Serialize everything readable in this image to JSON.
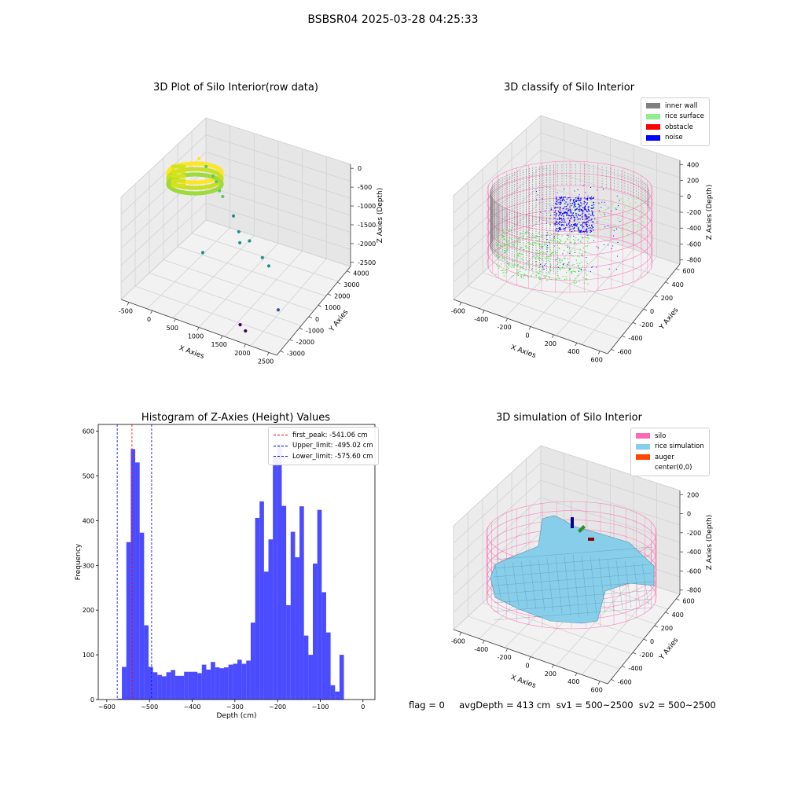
{
  "figure": {
    "suptitle": "BSBSR04 2025-03-28 04:25:33",
    "status_text": "flag = 0     avgDepth = 413 cm  sv1 = 500~2500  sv2 = 500~2500"
  },
  "chart_data": [
    {
      "id": "raw3d",
      "type": "scatter",
      "title": "3D Plot of Silo Interior(row data)",
      "xlabel": "X Axies",
      "ylabel": "Y Axies",
      "zlabel": "Z Axies (Depth)",
      "xticks": [
        "-500",
        "0",
        "500",
        "1000",
        "1500",
        "2000",
        "2500"
      ],
      "yticks": [
        "-3000",
        "-2000",
        "-1000",
        "0",
        "1000",
        "2000",
        "3000",
        "4000"
      ],
      "zticks": [
        "-2500",
        "-2000",
        "-1500",
        "-1000",
        "-500",
        "0"
      ],
      "colormap": [
        "#440154",
        "#3b528b",
        "#21918c",
        "#5ec962",
        "#fde725"
      ],
      "points": [
        {
          "x": -400,
          "y": 2600,
          "z": -350,
          "c": 0.95
        },
        {
          "x": -300,
          "y": 2500,
          "z": -400,
          "c": 0.9
        },
        {
          "x": -200,
          "y": 2450,
          "z": -450,
          "c": 0.85
        },
        {
          "x": 0,
          "y": 2300,
          "z": -600,
          "c": 0.75
        },
        {
          "x": 100,
          "y": 2200,
          "z": -700,
          "c": 0.7
        },
        {
          "x": 200,
          "y": 2100,
          "z": -900,
          "c": 0.65
        },
        {
          "x": 300,
          "y": 2000,
          "z": -1000,
          "c": 0.65
        },
        {
          "x": 600,
          "y": 1800,
          "z": -1400,
          "c": 0.6
        },
        {
          "x": 800,
          "y": 1500,
          "z": -1700,
          "c": 0.55
        },
        {
          "x": 900,
          "y": 1200,
          "z": -1900,
          "c": 0.5
        },
        {
          "x": 1200,
          "y": 900,
          "z": -1600,
          "c": 0.55
        },
        {
          "x": 1600,
          "y": 500,
          "z": -1800,
          "c": 0.5
        },
        {
          "x": 1800,
          "y": 300,
          "z": -1900,
          "c": 0.5
        },
        {
          "x": 400,
          "y": -200,
          "z": -2000,
          "c": 0.45
        },
        {
          "x": 2400,
          "y": -1200,
          "z": -2500,
          "c": 0.3
        },
        {
          "x": 1800,
          "y": -2300,
          "z": -2900,
          "c": 0.0
        },
        {
          "x": 2000,
          "y": -2600,
          "z": -2900,
          "c": 0.0
        }
      ]
    },
    {
      "id": "classify3d",
      "type": "scatter",
      "title": "3D classify of Silo Interior",
      "xlabel": "X Axies",
      "ylabel": "Y Axies",
      "zlabel": "Z Axies (Depth)",
      "xticks": [
        "-600",
        "-400",
        "-200",
        "0",
        "200",
        "400",
        "600"
      ],
      "yticks": [
        "-600",
        "-400",
        "-200",
        "0",
        "200",
        "400",
        "600"
      ],
      "zticks": [
        "-800",
        "-600",
        "-400",
        "-200",
        "0",
        "200",
        "400"
      ],
      "legend": [
        {
          "label": "inner wall",
          "color": "#808080"
        },
        {
          "label": "rice surface",
          "color": "#90ee90"
        },
        {
          "label": "obstacle",
          "color": "#ff0000"
        },
        {
          "label": "noise",
          "color": "#0000ff"
        }
      ],
      "silo_color": "#ff69b4"
    },
    {
      "id": "hist",
      "type": "bar",
      "title": "Histogram of Z-Axies (Height) Values",
      "xlabel": "Depth (cm)",
      "ylabel": "Frequency",
      "xlim": [
        -620,
        28
      ],
      "ylim": [
        0,
        615
      ],
      "xticks": [
        -600,
        -500,
        -400,
        -300,
        -200,
        -100,
        0
      ],
      "yticks": [
        0,
        100,
        200,
        300,
        400,
        500,
        600
      ],
      "bar_color": "#0000ff",
      "bin_start": -575,
      "bin_width": 10.4,
      "values": [
        2,
        73,
        352,
        560,
        530,
        373,
        166,
        73,
        61,
        55,
        52,
        61,
        66,
        53,
        53,
        62,
        62,
        62,
        59,
        78,
        67,
        84,
        72,
        70,
        72,
        78,
        80,
        89,
        80,
        87,
        172,
        406,
        443,
        286,
        358,
        542,
        572,
        433,
        211,
        375,
        318,
        432,
        143,
        100,
        304,
        424,
        240,
        150,
        32,
        18,
        100
      ],
      "vlines": [
        {
          "x": -541.06,
          "color": "#ff0000",
          "label": "first_peak: -541.06 cm"
        },
        {
          "x": -495.02,
          "color": "#0000ff",
          "label": "Upper_limit: -495.02 cm"
        },
        {
          "x": -575.6,
          "color": "#0000ff",
          "label": "Lower_limit: -575.60 cm"
        }
      ]
    },
    {
      "id": "sim3d",
      "type": "area",
      "title": "3D simulation of Silo Interior",
      "xlabel": "X Axies",
      "ylabel": "Y Axies",
      "zlabel": "Z Axies (Depth)",
      "xticks": [
        "-600",
        "-400",
        "-200",
        "0",
        "200",
        "400",
        "600"
      ],
      "yticks": [
        "-600",
        "-400",
        "-200",
        "0",
        "200",
        "400",
        "600"
      ],
      "zticks": [
        "-800",
        "-600",
        "-400",
        "-200",
        "0",
        "200"
      ],
      "legend": [
        {
          "label": "silo",
          "color": "#ff69b4"
        },
        {
          "label": "rice simulation",
          "color": "#87ceeb"
        },
        {
          "label": "auger",
          "color": "#ff4500"
        },
        {
          "label": "center(0,0)",
          "color": ""
        }
      ]
    }
  ]
}
